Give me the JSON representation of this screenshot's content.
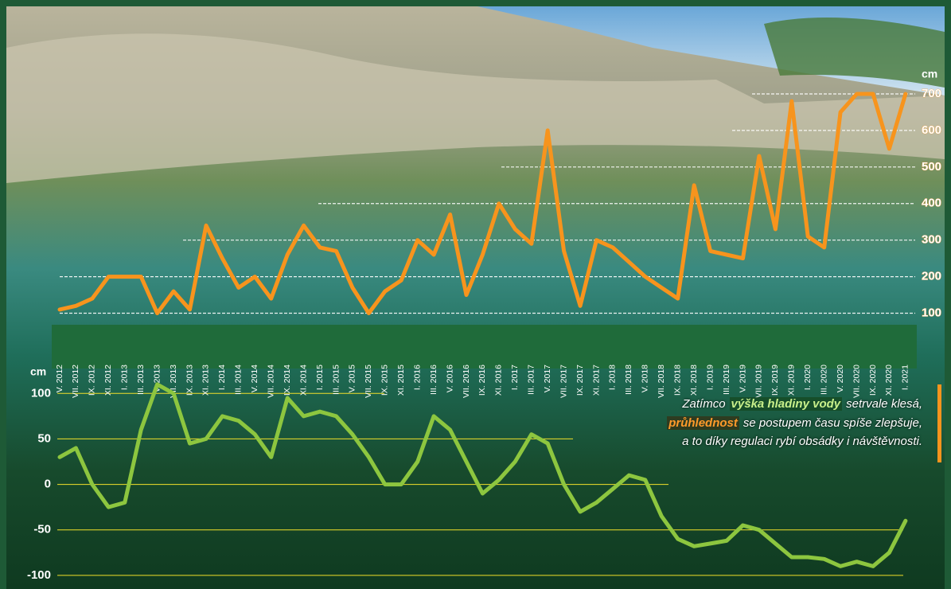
{
  "chart_data": {
    "type": "line",
    "categories": [
      "V. 2012",
      "VII. 2012",
      "IX. 2012",
      "XI. 2012",
      "I. 2013",
      "III. 2013",
      "V. 2013",
      "VII. 2013",
      "IX. 2013",
      "XI. 2013",
      "I. 2014",
      "III. 2014",
      "V. 2014",
      "VII. 2014",
      "IX. 2014",
      "XI. 2014",
      "I. 2015",
      "III. 2015",
      "V. 2015",
      "VII. 2015",
      "IX. 2015",
      "XI. 2015",
      "I. 2016",
      "III. 2016",
      "V. 2016",
      "VII. 2016",
      "IX. 2016",
      "XI. 2016",
      "I. 2017",
      "III. 2017",
      "V. 2017",
      "VII. 2017",
      "IX. 2017",
      "XI. 2017",
      "I. 2018",
      "III. 2018",
      "V. 2018",
      "VII. 2018",
      "IX. 2018",
      "XI. 2018",
      "I. 2019",
      "III. 2019",
      "V. 2019",
      "VII. 2019",
      "IX. 2019",
      "XI. 2019",
      "I. 2020",
      "III. 2020",
      "V. 2020",
      "VII. 2020",
      "IX. 2020",
      "XI. 2020",
      "I. 2021"
    ],
    "series": [
      {
        "color": "#f7941d",
        "axis": "y2",
        "values": [
          110,
          120,
          140,
          200,
          200,
          200,
          100,
          160,
          110,
          340,
          250,
          170,
          200,
          140,
          260,
          340,
          280,
          270,
          170,
          100,
          160,
          190,
          300,
          260,
          370,
          150,
          260,
          400,
          330,
          290,
          600,
          270,
          120,
          300,
          280,
          240,
          200,
          170,
          140,
          450,
          270,
          260,
          250,
          530,
          330,
          680,
          310,
          280,
          650,
          700,
          700,
          550,
          700
        ]
      },
      {
        "color": "#8dc63f",
        "values": [
          30,
          40,
          0,
          -25,
          -20,
          60,
          110,
          100,
          45,
          50,
          75,
          70,
          55,
          30,
          95,
          75,
          80,
          75,
          55,
          30,
          0,
          0,
          25,
          75,
          60,
          25,
          -10,
          5,
          25,
          55,
          45,
          0,
          -30,
          -20,
          -5,
          10,
          5,
          -35,
          -60,
          -68,
          -65,
          -62,
          -45,
          -50,
          -65,
          -80,
          -80,
          -82,
          -90,
          -85,
          -90,
          -75,
          -40
        ]
      }
    ],
    "ylabel": "cm",
    "ylim": [
      -115,
      130
    ],
    "yticks": [
      100,
      50,
      0,
      -50,
      -100
    ],
    "y2label": "cm",
    "y2lim": [
      75,
      750
    ],
    "y2ticks": [
      100,
      200,
      300,
      400,
      500,
      600,
      700
    ],
    "grid": true,
    "annotation": {
      "line1": [
        "Zatímco",
        "výška hladiny vody",
        "setrvale klesá,"
      ],
      "line2": [
        "průhlednost",
        "se postupem času spíše zlepšuje,"
      ],
      "line3": "a to díky regulaci rybí obsádky i návštěvnosti."
    }
  }
}
